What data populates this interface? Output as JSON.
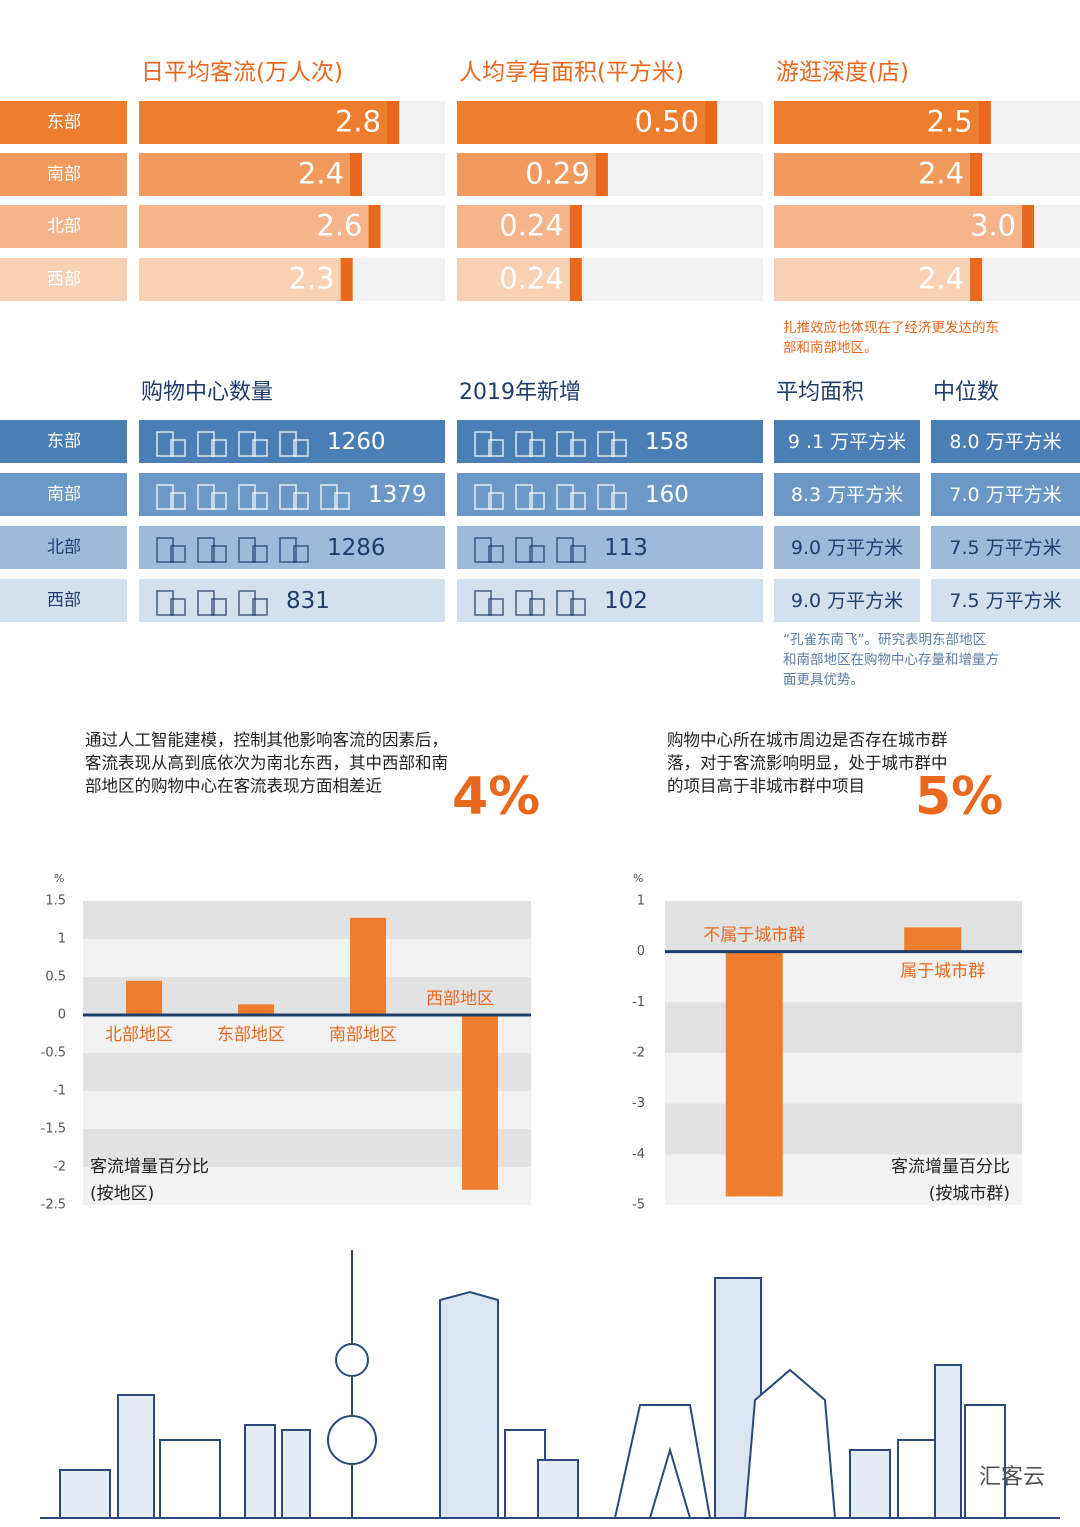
{
  "chart_data": [
    {
      "type": "hbar-panels",
      "categories": [
        "东部",
        "南部",
        "北部",
        "西部"
      ],
      "colors": [
        "#ee7d2e",
        "#f29a5e",
        "#f5b48a",
        "#f9d2b6"
      ],
      "text_colors": [
        "#ffffff",
        "#ffffff",
        "#ffffff",
        "#ffffff"
      ],
      "panels": [
        {
          "title": "日平均客流(万人次)",
          "values": [
            2.8,
            2.4,
            2.6,
            2.3
          ]
        },
        {
          "title": "人均享有面积(平方米)",
          "values": [
            0.5,
            0.29,
            0.24,
            0.24
          ],
          "value_labels": [
            "0.50",
            "0.29",
            "0.24",
            "0.24"
          ]
        },
        {
          "title": "游逛深度(店)",
          "values": [
            2.5,
            2.4,
            3.0,
            2.4
          ],
          "value_labels": [
            "2.5",
            "2.4",
            "3.0",
            "2.4"
          ]
        }
      ],
      "note": [
        "扎推效应也体现在了经济更发达的东",
        "部和南部地区。"
      ]
    },
    {
      "type": "icon-table",
      "categories": [
        "东部",
        "南部",
        "北部",
        "西部"
      ],
      "colors": [
        "#4a7fb5",
        "#6b98c6",
        "#9dbbd9",
        "#d3e1ee"
      ],
      "text_colors": [
        "#ffffff",
        "#ffffff",
        "#1f3d6b",
        "#1f3d6b"
      ],
      "columns": [
        {
          "title": "购物中心数量",
          "values": [
            1260,
            1379,
            1286,
            831
          ]
        },
        {
          "title": "2019年新增",
          "values": [
            158,
            160,
            113,
            102
          ]
        }
      ],
      "text_columns": [
        {
          "title": "平均面积",
          "values": [
            "9 .1 万平方米",
            "8.3 万平方米",
            "9.0 万平方米",
            "9.0 万平方米"
          ]
        },
        {
          "title": "中位数",
          "values": [
            "8.0 万平方米",
            "7.0 万平方米",
            "7.5 万平方米",
            "7.5 万平方米"
          ]
        }
      ],
      "note": [
        "“孔雀东南飞”。研究表明东部地区",
        "和南部地区在购物中心存量和增量方",
        "面更具优势。"
      ]
    },
    {
      "type": "bar",
      "headline": [
        "通过人工智能建模，控制其他影响客流的因素后，",
        "客流表现从高到底依次为南北东西，其中西部和南",
        "部地区的购物中心在客流表现方面相差近"
      ],
      "highlight": "4%",
      "ylabel": "%",
      "caption": [
        "客流增量百分比",
        "(按地区)"
      ],
      "categories": [
        "北部地区",
        "东部地区",
        "南部地区",
        "西部地区"
      ],
      "values": [
        0.45,
        0.14,
        1.28,
        -2.3
      ],
      "color": "#ee7d2e",
      "ylim": [
        -2.5,
        1.5
      ],
      "yticks": [
        1.5,
        1,
        0.5,
        0,
        -0.5,
        -1,
        -1.5,
        -2,
        -2.5
      ]
    },
    {
      "type": "bar",
      "headline": [
        "购物中心所在城市周边是否存在城市群",
        "落，对于客流影响明显，处于城市群中",
        "的项目高于非城市群中项目"
      ],
      "highlight": "5%",
      "ylabel": "%",
      "caption": [
        "客流增量百分比",
        "(按城市群)"
      ],
      "categories": [
        "不属于城市群",
        "属于城市群"
      ],
      "values": [
        -4.83,
        0.48
      ],
      "color": "#ee7d2e",
      "ylim": [
        -5,
        1
      ],
      "yticks": [
        1,
        0,
        -1,
        -2,
        -3,
        -4,
        -5
      ]
    }
  ],
  "logo": "汇客云"
}
